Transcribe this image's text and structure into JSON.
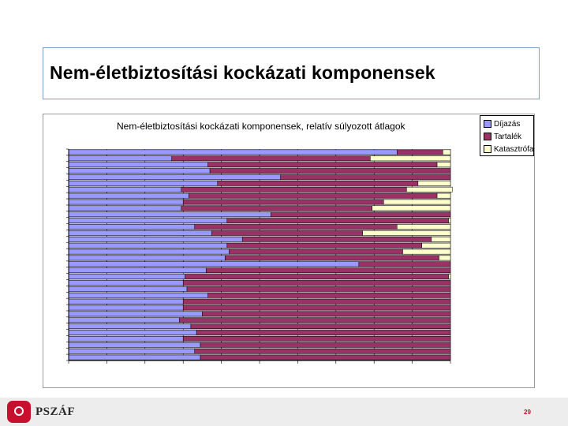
{
  "slide": {
    "title": "Nem-életbiztosítási kockázati komponensek",
    "page_number": "29",
    "logo_text": "PSZÁF",
    "logo_color": "#c8102e"
  },
  "chart_data": {
    "type": "bar",
    "orientation": "horizontal",
    "stacked": true,
    "normalized": true,
    "title": "Nem-életbiztosítási kockázati komponensek, relatív súlyozott átlagok",
    "xlabel": "",
    "ylabel": "",
    "xlim": [
      0,
      1
    ],
    "grid": true,
    "legend_position": "top-right",
    "categories_count": 34,
    "series": [
      {
        "name": "Díjazás",
        "color": "#9999ff",
        "values": [
          0.86,
          0.27,
          0.365,
          0.37,
          0.555,
          0.39,
          0.295,
          0.315,
          0.3,
          0.295,
          0.53,
          0.415,
          0.33,
          0.375,
          0.455,
          0.415,
          0.42,
          0.41,
          0.76,
          0.36,
          0.305,
          0.3,
          0.31,
          0.365,
          0.3,
          0.3,
          0.35,
          0.29,
          0.32,
          0.335,
          0.3,
          0.345,
          0.33,
          0.345
        ]
      },
      {
        "name": "Tartalék",
        "color": "#993366",
        "values": [
          0.12,
          0.52,
          0.6,
          0.63,
          0.445,
          0.525,
          0.59,
          0.65,
          0.525,
          0.5,
          0.47,
          0.58,
          0.53,
          0.395,
          0.495,
          0.51,
          0.455,
          0.56,
          0.24,
          0.64,
          0.69,
          0.7,
          0.69,
          0.635,
          0.7,
          0.7,
          0.65,
          0.71,
          0.68,
          0.665,
          0.7,
          0.655,
          0.67,
          0.655
        ]
      },
      {
        "name": "Katasztrófa",
        "color": "#ffffcc",
        "values": [
          0.02,
          0.21,
          0.035,
          0.0,
          0.0,
          0.085,
          0.12,
          0.035,
          0.175,
          0.205,
          0.0,
          0.005,
          0.14,
          0.23,
          0.05,
          0.075,
          0.125,
          0.03,
          0.0,
          0.0,
          0.005,
          0.0,
          0.0,
          0.0,
          0.0,
          0.0,
          0.0,
          0.0,
          0.0,
          0.0,
          0.0,
          0.0,
          0.0,
          0.0
        ]
      }
    ]
  }
}
